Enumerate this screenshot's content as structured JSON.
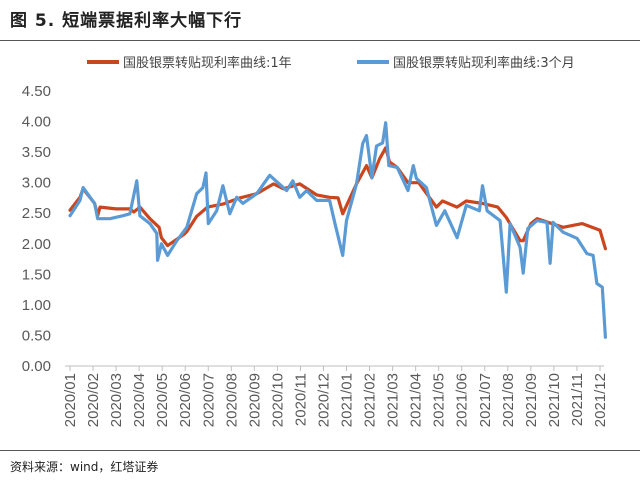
{
  "figure_title": "图 5. 短端票据利率大幅下行",
  "source": "资料来源：wind，红塔证券",
  "chart_data": {
    "type": "line",
    "title": "",
    "xlabel": "",
    "ylabel": "",
    "ylim": [
      0,
      4.5
    ],
    "yticks": [
      "0.00",
      "0.50",
      "1.00",
      "1.50",
      "2.00",
      "2.50",
      "3.00",
      "3.50",
      "4.00",
      "4.50"
    ],
    "xticks": [
      "2020/01",
      "2020/02",
      "2020/03",
      "2020/04",
      "2020/05",
      "2020/06",
      "2020/07",
      "2020/08",
      "2020/09",
      "2020/10",
      "2020/11",
      "2020/12",
      "2021/01",
      "2021/02",
      "2021/03",
      "2021/04",
      "2021/05",
      "2021/06",
      "2021/07",
      "2021/08",
      "2021/09",
      "2021/10",
      "2021/11",
      "2021/12"
    ],
    "grid": false,
    "legend": "top",
    "series": [
      {
        "name": "国股银票转贴现利率曲线:1年",
        "color": "#C9461F",
        "x": [
          "2020-01-01",
          "2020-01-14",
          "2020-01-18",
          "2020-02-03",
          "2020-02-07",
          "2020-02-10",
          "2020-03-01",
          "2020-03-19",
          "2020-03-24",
          "2020-04-02",
          "2020-04-15",
          "2020-04-27",
          "2020-04-30",
          "2020-05-08",
          "2020-05-29",
          "2020-06-03",
          "2020-06-16",
          "2020-06-30",
          "2020-07-20",
          "2020-08-12",
          "2020-09-04",
          "2020-09-26",
          "2020-10-09",
          "2020-10-30",
          "2020-11-22",
          "2020-12-09",
          "2020-12-20",
          "2020-12-26",
          "2021-01-14",
          "2021-01-27",
          "2021-02-04",
          "2021-02-14",
          "2021-02-22",
          "2021-02-27",
          "2021-03-07",
          "2021-03-21",
          "2021-04-05",
          "2021-04-28",
          "2021-05-06",
          "2021-05-25",
          "2021-06-07",
          "2021-06-28",
          "2021-07-18",
          "2021-07-29",
          "2021-08-17",
          "2021-08-21",
          "2021-09-01",
          "2021-09-09",
          "2021-10-13",
          "2021-11-08",
          "2021-12-01",
          "2021-12-08"
        ],
        "values": [
          2.55,
          2.76,
          2.9,
          2.66,
          2.46,
          2.6,
          2.57,
          2.57,
          2.52,
          2.6,
          2.41,
          2.27,
          2.1,
          1.97,
          2.15,
          2.2,
          2.45,
          2.6,
          2.65,
          2.75,
          2.82,
          2.98,
          2.9,
          2.98,
          2.8,
          2.76,
          2.75,
          2.49,
          2.98,
          3.28,
          3.08,
          3.39,
          3.57,
          3.34,
          3.25,
          3.0,
          3.0,
          2.6,
          2.7,
          2.6,
          2.7,
          2.66,
          2.6,
          2.43,
          2.05,
          2.05,
          2.33,
          2.41,
          2.27,
          2.33,
          2.22,
          1.92
        ]
      },
      {
        "name": "国股银票转贴现利率曲线:3个月",
        "color": "#5B9BD5",
        "x": [
          "2020-01-01",
          "2020-01-14",
          "2020-01-18",
          "2020-02-03",
          "2020-02-07",
          "2020-02-23",
          "2020-03-10",
          "2020-03-19",
          "2020-03-28",
          "2020-04-02",
          "2020-04-15",
          "2020-04-24",
          "2020-04-25",
          "2020-04-30",
          "2020-05-08",
          "2020-05-20",
          "2020-06-03",
          "2020-06-16",
          "2020-06-24",
          "2020-06-28",
          "2020-07-01",
          "2020-07-12",
          "2020-07-20",
          "2020-07-29",
          "2020-08-08",
          "2020-08-16",
          "2020-09-04",
          "2020-09-21",
          "2020-10-13",
          "2020-10-21",
          "2020-10-30",
          "2020-11-09",
          "2020-11-22",
          "2020-12-09",
          "2020-12-16",
          "2020-12-26",
          "2021-01-01",
          "2021-01-14",
          "2021-01-22",
          "2021-01-27",
          "2021-02-04",
          "2021-02-10",
          "2021-02-18",
          "2021-02-22",
          "2021-02-26",
          "2021-03-07",
          "2021-03-21",
          "2021-03-28",
          "2021-04-02",
          "2021-04-15",
          "2021-04-28",
          "2021-05-09",
          "2021-05-25",
          "2021-06-07",
          "2021-06-24",
          "2021-06-28",
          "2021-07-04",
          "2021-07-21",
          "2021-07-29",
          "2021-08-04",
          "2021-08-17",
          "2021-08-21",
          "2021-08-27",
          "2021-09-09",
          "2021-09-22",
          "2021-09-26",
          "2021-09-30",
          "2021-10-13",
          "2021-11-01",
          "2021-11-14",
          "2021-11-22",
          "2021-11-27",
          "2021-12-04",
          "2021-12-08"
        ],
        "values": [
          2.46,
          2.71,
          2.92,
          2.66,
          2.41,
          2.41,
          2.46,
          2.49,
          3.03,
          2.46,
          2.33,
          2.17,
          1.73,
          2.0,
          1.81,
          2.05,
          2.27,
          2.82,
          2.92,
          3.16,
          2.33,
          2.54,
          2.95,
          2.49,
          2.76,
          2.66,
          2.82,
          3.12,
          2.87,
          3.03,
          2.76,
          2.87,
          2.71,
          2.71,
          2.33,
          1.81,
          2.38,
          2.98,
          3.64,
          3.77,
          3.08,
          3.6,
          3.65,
          3.98,
          3.28,
          3.25,
          2.87,
          3.28,
          3.07,
          2.92,
          2.3,
          2.54,
          2.1,
          2.63,
          2.54,
          2.95,
          2.54,
          2.38,
          1.21,
          2.33,
          1.94,
          1.52,
          2.25,
          2.38,
          2.35,
          1.68,
          2.35,
          2.19,
          2.09,
          1.84,
          1.81,
          1.35,
          1.29,
          0.47
        ]
      }
    ]
  }
}
